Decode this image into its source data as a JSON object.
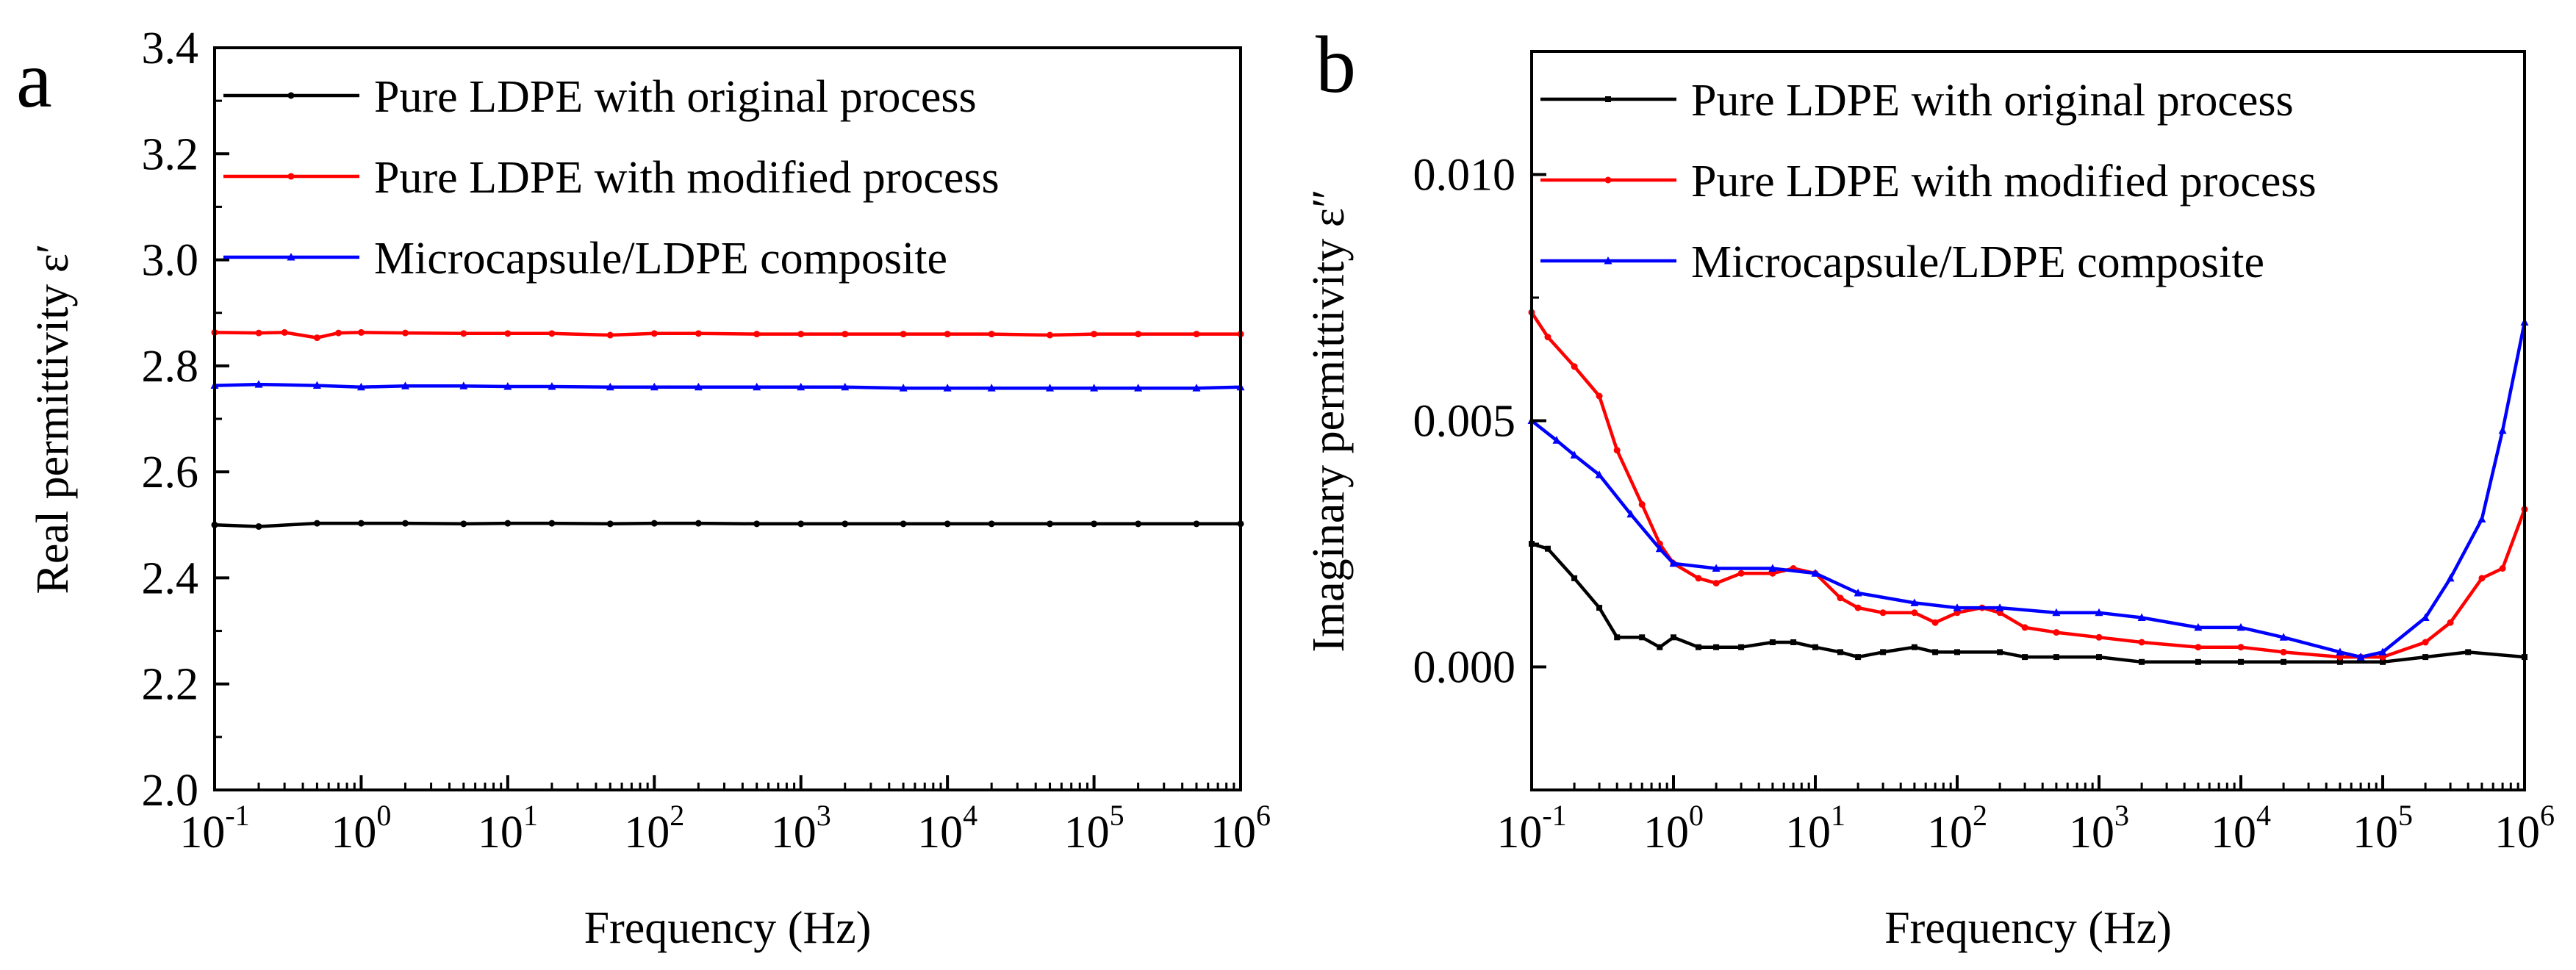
{
  "chart_data": [
    {
      "panel_label": "a",
      "type": "line",
      "xscale": "log",
      "xlabel": "Frequency (Hz)",
      "ylabel": "Real permittivity ε′",
      "xlim": [
        0.1,
        1000000
      ],
      "ylim": [
        2.0,
        3.4
      ],
      "xticks": [
        {
          "base": "10",
          "exp": "-1"
        },
        {
          "base": "10",
          "exp": "0"
        },
        {
          "base": "10",
          "exp": "1"
        },
        {
          "base": "10",
          "exp": "2"
        },
        {
          "base": "10",
          "exp": "3"
        },
        {
          "base": "10",
          "exp": "4"
        },
        {
          "base": "10",
          "exp": "5"
        },
        {
          "base": "10",
          "exp": "6"
        }
      ],
      "yticks": [
        "2.0",
        "2.2",
        "2.4",
        "2.6",
        "2.8",
        "3.0",
        "3.2",
        "3.4"
      ],
      "legend_position": "top-right",
      "grid": false,
      "series": [
        {
          "name": "Pure LDPE with original process",
          "color": "#000000",
          "x": [
            0.1,
            0.2,
            0.5,
            1,
            2,
            5,
            10,
            20,
            50,
            100,
            200,
            500,
            1000,
            2000,
            5000,
            10000,
            20000,
            50000,
            100000,
            200000,
            500000,
            1000000
          ],
          "y": [
            2.5,
            2.497,
            2.503,
            2.503,
            2.503,
            2.502,
            2.503,
            2.503,
            2.502,
            2.503,
            2.503,
            2.502,
            2.502,
            2.502,
            2.502,
            2.502,
            2.502,
            2.502,
            2.502,
            2.502,
            2.502,
            2.502
          ]
        },
        {
          "name": "Pure LDPE with modified process",
          "color": "#ff0000",
          "x": [
            0.1,
            0.2,
            0.3,
            0.5,
            0.7,
            1,
            2,
            5,
            10,
            20,
            50,
            100,
            200,
            500,
            1000,
            2000,
            5000,
            10000,
            20000,
            50000,
            100000,
            200000,
            500000,
            1000000
          ],
          "y": [
            2.863,
            2.862,
            2.863,
            2.853,
            2.862,
            2.863,
            2.862,
            2.861,
            2.861,
            2.861,
            2.858,
            2.861,
            2.861,
            2.86,
            2.86,
            2.86,
            2.86,
            2.86,
            2.86,
            2.858,
            2.86,
            2.86,
            2.86,
            2.86
          ]
        },
        {
          "name": "Microcapsule/LDPE composite",
          "color": "#0000ff",
          "x": [
            0.1,
            0.2,
            0.5,
            1,
            2,
            5,
            10,
            20,
            50,
            100,
            200,
            500,
            1000,
            2000,
            5000,
            10000,
            20000,
            50000,
            100000,
            200000,
            500000,
            1000000
          ],
          "y": [
            2.763,
            2.765,
            2.763,
            2.76,
            2.762,
            2.762,
            2.761,
            2.761,
            2.76,
            2.76,
            2.76,
            2.76,
            2.76,
            2.76,
            2.758,
            2.758,
            2.758,
            2.758,
            2.758,
            2.758,
            2.758,
            2.76
          ]
        }
      ]
    },
    {
      "panel_label": "b",
      "type": "line",
      "xscale": "log",
      "xlabel": "Frequency (Hz)",
      "ylabel": "Imaginary permittivity ε″",
      "xlim": [
        0.1,
        1000000
      ],
      "ylim": [
        -0.0025,
        0.0125
      ],
      "xticks": [
        {
          "base": "10",
          "exp": "-1"
        },
        {
          "base": "10",
          "exp": "0"
        },
        {
          "base": "10",
          "exp": "1"
        },
        {
          "base": "10",
          "exp": "2"
        },
        {
          "base": "10",
          "exp": "3"
        },
        {
          "base": "10",
          "exp": "4"
        },
        {
          "base": "10",
          "exp": "5"
        },
        {
          "base": "10",
          "exp": "6"
        }
      ],
      "yticks": [
        "0.000",
        "0.005",
        "0.010"
      ],
      "ytick_values": [
        0.0,
        0.005,
        0.01
      ],
      "legend_position": "top-right",
      "grid": false,
      "series": [
        {
          "name": "Pure LDPE with original process",
          "color": "#000000",
          "x": [
            0.1,
            0.13,
            0.2,
            0.3,
            0.4,
            0.6,
            0.8,
            1,
            1.5,
            2,
            3,
            5,
            7,
            10,
            15,
            20,
            30,
            50,
            70,
            100,
            200,
            300,
            500,
            1000,
            2000,
            5000,
            10000,
            20000,
            50000,
            100000,
            200000,
            400000,
            1000000
          ],
          "y": [
            0.0025,
            0.0024,
            0.0018,
            0.0012,
            0.0006,
            0.0006,
            0.0004,
            0.0006,
            0.0004,
            0.0004,
            0.0004,
            0.0005,
            0.0005,
            0.0004,
            0.0003,
            0.0002,
            0.0003,
            0.0004,
            0.0003,
            0.0003,
            0.0003,
            0.0002,
            0.0002,
            0.0002,
            0.0001,
            0.0001,
            0.0001,
            0.0001,
            0.0001,
            0.0001,
            0.0002,
            0.0003,
            0.0002
          ]
        },
        {
          "name": "Pure LDPE with modified process",
          "color": "#ff0000",
          "x": [
            0.1,
            0.13,
            0.2,
            0.3,
            0.4,
            0.6,
            0.8,
            1,
            1.5,
            2,
            3,
            5,
            7,
            10,
            15,
            20,
            30,
            50,
            70,
            100,
            150,
            200,
            300,
            500,
            1000,
            2000,
            5000,
            10000,
            20000,
            50000,
            70000,
            100000,
            200000,
            300000,
            500000,
            700000,
            1000000
          ],
          "y": [
            0.0072,
            0.0067,
            0.0061,
            0.0055,
            0.0044,
            0.0033,
            0.0025,
            0.0021,
            0.0018,
            0.0017,
            0.0019,
            0.0019,
            0.002,
            0.0019,
            0.0014,
            0.0012,
            0.0011,
            0.0011,
            0.0009,
            0.0011,
            0.0012,
            0.0011,
            0.0008,
            0.0007,
            0.0006,
            0.0005,
            0.0004,
            0.0004,
            0.0003,
            0.0002,
            0.0002,
            0.0002,
            0.0005,
            0.0009,
            0.0018,
            0.002,
            0.0032
          ]
        },
        {
          "name": "Microcapsule/LDPE composite",
          "color": "#0000ff",
          "x": [
            0.1,
            0.15,
            0.2,
            0.3,
            0.5,
            0.8,
            1,
            2,
            5,
            10,
            20,
            50,
            100,
            200,
            500,
            1000,
            2000,
            5000,
            10000,
            20000,
            50000,
            70000,
            100000,
            200000,
            300000,
            500000,
            700000,
            1000000
          ],
          "y": [
            0.005,
            0.0046,
            0.0043,
            0.0039,
            0.0031,
            0.0024,
            0.0021,
            0.002,
            0.002,
            0.0019,
            0.0015,
            0.0013,
            0.0012,
            0.0012,
            0.0011,
            0.0011,
            0.001,
            0.0008,
            0.0008,
            0.0006,
            0.0003,
            0.0002,
            0.0003,
            0.001,
            0.0018,
            0.003,
            0.0048,
            0.007
          ]
        }
      ]
    }
  ]
}
